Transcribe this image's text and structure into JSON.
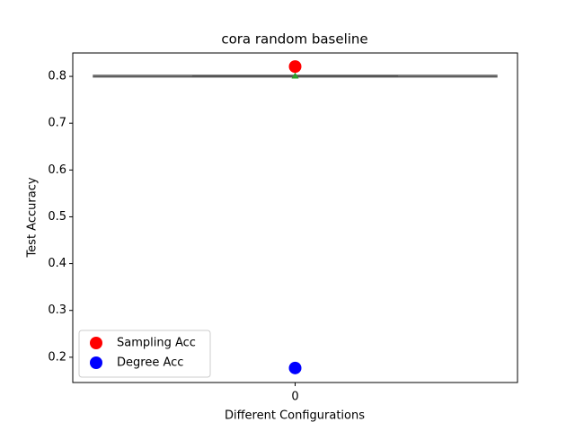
{
  "chart_data": {
    "type": "box",
    "title": "cora random baseline",
    "xlabel": "Different Configurations",
    "ylabel": "Test Accuracy",
    "categories": [
      "0"
    ],
    "box": {
      "whislo": 0.799,
      "q1": 0.7995,
      "median": 0.8,
      "q3": 0.8015,
      "whishi": 0.802,
      "mean": 0.801,
      "color": "#555555",
      "mean_color": "#2ca02c"
    },
    "series": [
      {
        "name": "Sampling Acc",
        "color": "#ff0000",
        "values": [
          0.821
        ]
      },
      {
        "name": "Degree Acc",
        "color": "#0000ff",
        "values": [
          0.177
        ]
      }
    ],
    "ylim": [
      0.146,
      0.85
    ],
    "yticks": [
      0.2,
      0.3,
      0.4,
      0.5,
      0.6,
      0.7,
      0.8
    ],
    "legend": "lower left"
  }
}
